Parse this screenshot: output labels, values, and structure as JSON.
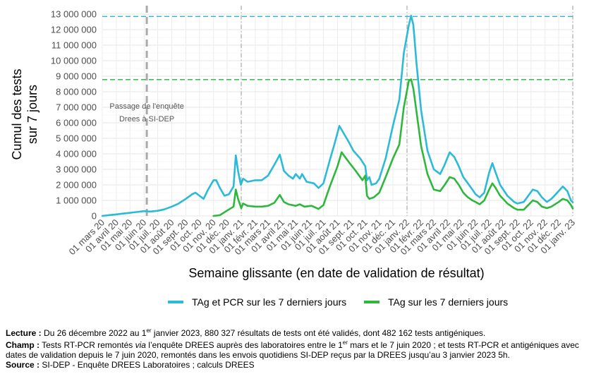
{
  "chart_data": {
    "type": "line",
    "title": "",
    "ylabel_line1": "Cumul des tests",
    "ylabel_line2": "sur 7 jours",
    "xlabel": "Semaine glissante (en date de validation de résultat)",
    "ylim": [
      0,
      13000000
    ],
    "xlim": [
      "2020-03-01",
      "2023-01-01"
    ],
    "grid": true,
    "legend_position": "bottom",
    "y_ticks": [
      0,
      1000000,
      2000000,
      3000000,
      4000000,
      5000000,
      6000000,
      7000000,
      8000000,
      9000000,
      10000000,
      11000000,
      12000000,
      13000000
    ],
    "y_tick_labels": [
      "0",
      "1 000 000",
      "2 000 000",
      "3 000 000",
      "4 000 000",
      "5 000 000",
      "6 000 000",
      "7 000 000",
      "8 000 000",
      "9 000 000",
      "10 000 000",
      "11 000 000",
      "12 000 000",
      "13 000 000"
    ],
    "x_ticks": [
      "2020-03-01",
      "2020-04-01",
      "2020-05-01",
      "2020-06-01",
      "2020-07-01",
      "2020-08-01",
      "2020-09-01",
      "2020-10-01",
      "2020-11-01",
      "2020-12-01",
      "2021-01-01",
      "2021-02-01",
      "2021-03-01",
      "2021-04-01",
      "2021-05-01",
      "2021-06-01",
      "2021-07-01",
      "2021-08-01",
      "2021-09-01",
      "2021-10-01",
      "2021-11-01",
      "2021-12-01",
      "2022-01-01",
      "2022-02-01",
      "2022-03-01",
      "2022-04-01",
      "2022-05-01",
      "2022-06-01",
      "2022-07-01",
      "2022-08-01",
      "2022-09-01",
      "2022-10-01",
      "2022-11-01",
      "2022-12-01",
      "2023-01-01"
    ],
    "x_tick_labels": [
      "01 mars 20",
      "01 avril 20",
      "01 mai 20",
      "01 juin 20",
      "01 juil. 20",
      "01 août 20",
      "01 sept. 20",
      "01 oct. 20",
      "01 nov. 20",
      "01 déc. 20",
      "01 janv. 21",
      "01 févr. 21",
      "01 mars 21",
      "01 avril 21",
      "01 mai 21",
      "01 juin 21",
      "01 juil. 21",
      "01 août 21",
      "01 sept. 21",
      "01 oct. 21",
      "01 nov. 21",
      "01 déc. 21",
      "01 janv. 22",
      "01 févr. 22",
      "01 mars 22",
      "01 avril 22",
      "01 mai 22",
      "01 juin 22",
      "01 juil. 22",
      "01 août 22",
      "01 sept. 22",
      "01 oct. 22",
      "01 nov. 22",
      "01 déc. 22",
      "01 janv. 23"
    ],
    "reference_lines": [
      {
        "type": "vertical",
        "x": "2020-06-07",
        "style": "dashed-thick",
        "color": "#aaaaaa"
      },
      {
        "type": "vertical",
        "x": "2021-01-01",
        "style": "dotdash",
        "color": "#aaaaaa"
      },
      {
        "type": "vertical",
        "x": "2022-01-01",
        "style": "dotdash",
        "color": "#aaaaaa"
      },
      {
        "type": "vertical",
        "x": "2023-01-01",
        "style": "dotdash",
        "color": "#aaaaaa"
      },
      {
        "type": "horizontal",
        "y": 12850000,
        "style": "dashed",
        "color": "#2bb5d6"
      },
      {
        "type": "horizontal",
        "y": 8780000,
        "style": "dashed",
        "color": "#22b33c"
      }
    ],
    "annotations": [
      {
        "text_line1": "Passage de l'enquête",
        "text_line2": "Drees à SI-DEP",
        "x": "2020-06-07",
        "y_line1": 6900000,
        "y_line2": 6100000
      }
    ],
    "series": [
      {
        "name": "TAg et PCR sur les 7 derniers jours",
        "color": "#2bbad8",
        "points": [
          [
            "2020-03-01",
            0
          ],
          [
            "2020-03-15",
            50000
          ],
          [
            "2020-04-01",
            100000
          ],
          [
            "2020-04-15",
            150000
          ],
          [
            "2020-05-01",
            200000
          ],
          [
            "2020-05-15",
            250000
          ],
          [
            "2020-06-01",
            310000
          ],
          [
            "2020-06-07",
            300000
          ],
          [
            "2020-06-15",
            280000
          ],
          [
            "2020-07-01",
            330000
          ],
          [
            "2020-07-15",
            420000
          ],
          [
            "2020-08-01",
            600000
          ],
          [
            "2020-08-15",
            780000
          ],
          [
            "2020-09-01",
            1100000
          ],
          [
            "2020-09-15",
            1400000
          ],
          [
            "2020-09-22",
            1500000
          ],
          [
            "2020-10-01",
            1300000
          ],
          [
            "2020-10-10",
            1100000
          ],
          [
            "2020-10-20",
            1700000
          ],
          [
            "2020-11-01",
            2300000
          ],
          [
            "2020-11-07",
            2300000
          ],
          [
            "2020-11-15",
            1800000
          ],
          [
            "2020-11-25",
            1300000
          ],
          [
            "2020-12-05",
            1400000
          ],
          [
            "2020-12-15",
            1900000
          ],
          [
            "2020-12-20",
            3900000
          ],
          [
            "2020-12-25",
            2900000
          ],
          [
            "2020-12-31",
            2000000
          ],
          [
            "2021-01-05",
            2400000
          ],
          [
            "2021-01-15",
            2200000
          ],
          [
            "2021-02-01",
            2300000
          ],
          [
            "2021-02-15",
            2300000
          ],
          [
            "2021-03-01",
            2600000
          ],
          [
            "2021-03-15",
            3300000
          ],
          [
            "2021-03-27",
            3950000
          ],
          [
            "2021-04-05",
            2900000
          ],
          [
            "2021-04-15",
            2600000
          ],
          [
            "2021-04-25",
            2400000
          ],
          [
            "2021-05-01",
            2700000
          ],
          [
            "2021-05-10",
            2400000
          ],
          [
            "2021-05-15",
            2700000
          ],
          [
            "2021-05-25",
            2200000
          ],
          [
            "2021-06-10",
            2100000
          ],
          [
            "2021-06-20",
            1800000
          ],
          [
            "2021-07-01",
            2100000
          ],
          [
            "2021-07-15",
            3600000
          ],
          [
            "2021-07-25",
            4600000
          ],
          [
            "2021-08-05",
            5800000
          ],
          [
            "2021-08-15",
            5300000
          ],
          [
            "2021-08-25",
            4800000
          ],
          [
            "2021-09-05",
            4200000
          ],
          [
            "2021-09-20",
            3700000
          ],
          [
            "2021-10-01",
            3200000
          ],
          [
            "2021-10-05",
            2300000
          ],
          [
            "2021-10-10",
            2500000
          ],
          [
            "2021-10-15",
            2000000
          ],
          [
            "2021-10-25",
            2100000
          ],
          [
            "2021-11-01",
            2400000
          ],
          [
            "2021-11-15",
            3700000
          ],
          [
            "2021-12-01",
            5800000
          ],
          [
            "2021-12-15",
            7500000
          ],
          [
            "2021-12-25",
            10500000
          ],
          [
            "2022-01-05",
            12300000
          ],
          [
            "2022-01-10",
            12900000
          ],
          [
            "2022-01-15",
            12300000
          ],
          [
            "2022-01-22",
            9800000
          ],
          [
            "2022-02-01",
            6800000
          ],
          [
            "2022-02-15",
            4200000
          ],
          [
            "2022-03-01",
            3000000
          ],
          [
            "2022-03-15",
            2700000
          ],
          [
            "2022-03-25",
            3300000
          ],
          [
            "2022-04-05",
            4100000
          ],
          [
            "2022-04-15",
            3800000
          ],
          [
            "2022-04-25",
            3200000
          ],
          [
            "2022-05-05",
            2500000
          ],
          [
            "2022-05-15",
            2100000
          ],
          [
            "2022-05-25",
            1700000
          ],
          [
            "2022-06-01",
            1400000
          ],
          [
            "2022-06-10",
            1200000
          ],
          [
            "2022-06-20",
            1500000
          ],
          [
            "2022-07-01",
            2800000
          ],
          [
            "2022-07-08",
            3400000
          ],
          [
            "2022-07-15",
            2800000
          ],
          [
            "2022-07-25",
            2000000
          ],
          [
            "2022-08-10",
            1300000
          ],
          [
            "2022-08-25",
            900000
          ],
          [
            "2022-09-01",
            800000
          ],
          [
            "2022-09-15",
            900000
          ],
          [
            "2022-09-25",
            1300000
          ],
          [
            "2022-10-05",
            1700000
          ],
          [
            "2022-10-15",
            1600000
          ],
          [
            "2022-10-25",
            1200000
          ],
          [
            "2022-11-05",
            900000
          ],
          [
            "2022-11-15",
            1100000
          ],
          [
            "2022-12-01",
            1600000
          ],
          [
            "2022-12-10",
            1900000
          ],
          [
            "2022-12-20",
            1600000
          ],
          [
            "2022-12-28",
            1000000
          ],
          [
            "2023-01-01",
            880327
          ]
        ]
      },
      {
        "name": "TAg sur les 7 derniers jours",
        "color": "#2db83d",
        "points": [
          [
            "2020-11-01",
            0
          ],
          [
            "2020-11-15",
            50000
          ],
          [
            "2020-12-01",
            350000
          ],
          [
            "2020-12-15",
            600000
          ],
          [
            "2020-12-20",
            1700000
          ],
          [
            "2020-12-25",
            1100000
          ],
          [
            "2021-01-01",
            500000
          ],
          [
            "2021-01-05",
            800000
          ],
          [
            "2021-01-15",
            650000
          ],
          [
            "2021-02-01",
            600000
          ],
          [
            "2021-02-15",
            600000
          ],
          [
            "2021-03-01",
            650000
          ],
          [
            "2021-03-15",
            850000
          ],
          [
            "2021-03-27",
            1350000
          ],
          [
            "2021-04-05",
            900000
          ],
          [
            "2021-04-15",
            750000
          ],
          [
            "2021-05-01",
            650000
          ],
          [
            "2021-05-10",
            750000
          ],
          [
            "2021-05-20",
            600000
          ],
          [
            "2021-06-05",
            650000
          ],
          [
            "2021-06-20",
            450000
          ],
          [
            "2021-07-01",
            700000
          ],
          [
            "2021-07-15",
            1900000
          ],
          [
            "2021-08-01",
            3200000
          ],
          [
            "2021-08-10",
            4100000
          ],
          [
            "2021-08-25",
            3500000
          ],
          [
            "2021-09-10",
            2900000
          ],
          [
            "2021-09-25",
            2300000
          ],
          [
            "2021-10-01",
            2600000
          ],
          [
            "2021-10-05",
            1300000
          ],
          [
            "2021-10-10",
            1100000
          ],
          [
            "2021-10-20",
            1200000
          ],
          [
            "2021-11-01",
            1500000
          ],
          [
            "2021-11-15",
            2500000
          ],
          [
            "2021-12-01",
            3700000
          ],
          [
            "2021-12-15",
            4600000
          ],
          [
            "2021-12-25",
            7000000
          ],
          [
            "2022-01-05",
            8700000
          ],
          [
            "2022-01-10",
            8800000
          ],
          [
            "2022-01-15",
            8200000
          ],
          [
            "2022-01-22",
            6700000
          ],
          [
            "2022-02-01",
            4500000
          ],
          [
            "2022-02-15",
            2700000
          ],
          [
            "2022-03-01",
            1700000
          ],
          [
            "2022-03-15",
            1600000
          ],
          [
            "2022-03-25",
            2000000
          ],
          [
            "2022-04-05",
            2500000
          ],
          [
            "2022-04-15",
            2400000
          ],
          [
            "2022-04-25",
            2000000
          ],
          [
            "2022-05-05",
            1500000
          ],
          [
            "2022-05-15",
            1200000
          ],
          [
            "2022-05-25",
            1000000
          ],
          [
            "2022-06-01",
            900000
          ],
          [
            "2022-06-10",
            750000
          ],
          [
            "2022-06-20",
            1000000
          ],
          [
            "2022-07-01",
            1700000
          ],
          [
            "2022-07-08",
            2100000
          ],
          [
            "2022-07-15",
            1800000
          ],
          [
            "2022-07-25",
            1300000
          ],
          [
            "2022-08-10",
            800000
          ],
          [
            "2022-08-25",
            500000
          ],
          [
            "2022-09-01",
            400000
          ],
          [
            "2022-09-15",
            400000
          ],
          [
            "2022-09-25",
            700000
          ],
          [
            "2022-10-05",
            1000000
          ],
          [
            "2022-10-15",
            900000
          ],
          [
            "2022-10-25",
            600000
          ],
          [
            "2022-11-05",
            500000
          ],
          [
            "2022-11-15",
            600000
          ],
          [
            "2022-12-01",
            900000
          ],
          [
            "2022-12-10",
            1100000
          ],
          [
            "2022-12-20",
            1000000
          ],
          [
            "2022-12-28",
            700000
          ],
          [
            "2023-01-01",
            482162
          ]
        ]
      }
    ]
  },
  "legend": {
    "item1": "TAg et PCR sur les 7 derniers jours",
    "item2": "TAg sur les 7 derniers jours"
  },
  "notes": {
    "lecture_label": "Lecture :",
    "lecture_a": " Du 26 décembre 2022 au 1",
    "lecture_sup": "er",
    "lecture_b": " janvier 2023, 880 327 résultats de tests ont été validés, dont 482 162 tests antigéniques.",
    "champ_label": "Champ :",
    "champ_a": " Tests RT-PCR remontés ",
    "champ_via": "via",
    "champ_b": " l’enquête DREES auprès des laboratoires entre le 1",
    "champ_sup": "er",
    "champ_c": " mars et le 7 juin 2020 ; et tests RT-PCR et antigéniques avec dates de validation depuis le 7 juin 2020, remontés dans les envois quotidiens SI-DEP reçus par la DREES jusqu’au 3 janvier 2023 5h.",
    "source_label": "Source :",
    "source_text": " SI-DEP - Enquête DREES Laboratoires ; calculs DREES"
  }
}
